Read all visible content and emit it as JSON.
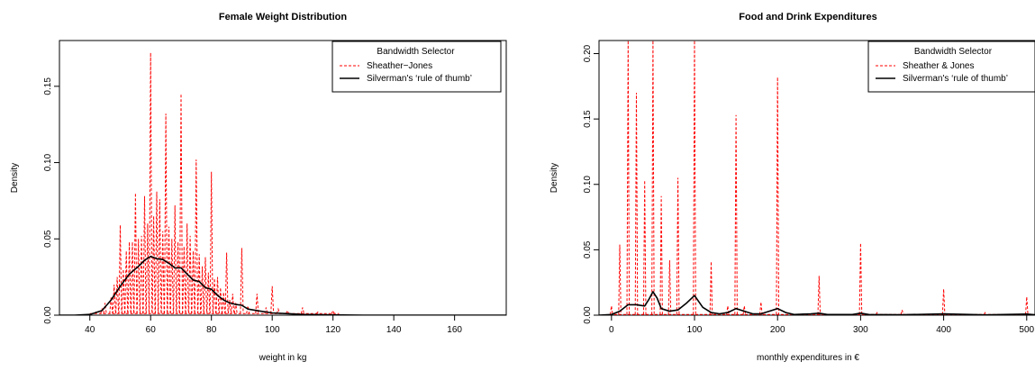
{
  "chart_data": [
    {
      "type": "line",
      "title": "Female Weight Distribution",
      "xlabel": "weight in kg",
      "ylabel": "Density",
      "xlim": [
        30,
        177
      ],
      "ylim": [
        0,
        0.18
      ],
      "xticks": [
        "40",
        "60",
        "80",
        "100",
        "120",
        "140",
        "160"
      ],
      "yticks": [
        "0.00",
        "0.05",
        "0.10",
        "0.15"
      ],
      "legend": {
        "title": "Bandwidth Selector",
        "position": "top-right",
        "entries": [
          {
            "label": "Sheather−Jones",
            "color": "#ff0000",
            "dash": true
          },
          {
            "label": "Silverman's ‘rule of thumb’",
            "color": "#000000",
            "dash": false
          }
        ]
      },
      "series": [
        {
          "name": "Sheather−Jones",
          "color": "#ff0000",
          "kind": "spikes",
          "baseline": 0.001,
          "points": [
            [
              42,
              0.002
            ],
            [
              44,
              0.004
            ],
            [
              45,
              0.008
            ],
            [
              47,
              0.012
            ],
            [
              48,
              0.02
            ],
            [
              49,
              0.025
            ],
            [
              50,
              0.059
            ],
            [
              51,
              0.03
            ],
            [
              52,
              0.042
            ],
            [
              53,
              0.048
            ],
            [
              54,
              0.048
            ],
            [
              55,
              0.08
            ],
            [
              56,
              0.05
            ],
            [
              57,
              0.052
            ],
            [
              58,
              0.078
            ],
            [
              59,
              0.06
            ],
            [
              60,
              0.172
            ],
            [
              61,
              0.065
            ],
            [
              62,
              0.081
            ],
            [
              63,
              0.076
            ],
            [
              64,
              0.055
            ],
            [
              65,
              0.132
            ],
            [
              66,
              0.058
            ],
            [
              67,
              0.05
            ],
            [
              68,
              0.072
            ],
            [
              69,
              0.048
            ],
            [
              70,
              0.145
            ],
            [
              71,
              0.045
            ],
            [
              72,
              0.06
            ],
            [
              73,
              0.052
            ],
            [
              74,
              0.042
            ],
            [
              75,
              0.102
            ],
            [
              76,
              0.04
            ],
            [
              77,
              0.032
            ],
            [
              78,
              0.038
            ],
            [
              79,
              0.028
            ],
            [
              80,
              0.094
            ],
            [
              81,
              0.024
            ],
            [
              82,
              0.025
            ],
            [
              83,
              0.018
            ],
            [
              84,
              0.015
            ],
            [
              85,
              0.041
            ],
            [
              86,
              0.01
            ],
            [
              87,
              0.014
            ],
            [
              88,
              0.008
            ],
            [
              90,
              0.044
            ],
            [
              92,
              0.006
            ],
            [
              95,
              0.014
            ],
            [
              98,
              0.005
            ],
            [
              100,
              0.019
            ],
            [
              102,
              0.004
            ],
            [
              105,
              0.003
            ],
            [
              110,
              0.005
            ],
            [
              115,
              0.002
            ],
            [
              120,
              0.003
            ]
          ]
        },
        {
          "name": "Silverman's ‘rule of thumb’",
          "color": "#000000",
          "kind": "line",
          "points": [
            [
              30,
              0
            ],
            [
              35,
              0
            ],
            [
              40,
              0.0005
            ],
            [
              44,
              0.003
            ],
            [
              47,
              0.01
            ],
            [
              50,
              0.019
            ],
            [
              53,
              0.027
            ],
            [
              56,
              0.032
            ],
            [
              58,
              0.036
            ],
            [
              60,
              0.0385
            ],
            [
              62,
              0.037
            ],
            [
              64,
              0.0365
            ],
            [
              66,
              0.034
            ],
            [
              68,
              0.031
            ],
            [
              70,
              0.031
            ],
            [
              72,
              0.027
            ],
            [
              74,
              0.023
            ],
            [
              76,
              0.022
            ],
            [
              78,
              0.018
            ],
            [
              80,
              0.017
            ],
            [
              82,
              0.013
            ],
            [
              84,
              0.01
            ],
            [
              86,
              0.008
            ],
            [
              88,
              0.007
            ],
            [
              90,
              0.0065
            ],
            [
              92,
              0.004
            ],
            [
              95,
              0.003
            ],
            [
              100,
              0.0015
            ],
            [
              105,
              0.001
            ],
            [
              110,
              0.0005
            ],
            [
              120,
              0.0002
            ],
            [
              130,
              0
            ],
            [
              177,
              0
            ]
          ]
        }
      ]
    },
    {
      "type": "line",
      "title": "Food and Drink Expenditures",
      "xlabel": "monthly expenditures in €",
      "ylabel": "Density",
      "xlim": [
        -15,
        510
      ],
      "ylim": [
        0,
        0.21
      ],
      "xticks": [
        "0",
        "100",
        "200",
        "300",
        "400",
        "500"
      ],
      "yticks": [
        "0.00",
        "0.05",
        "0.10",
        "0.15",
        "0.20"
      ],
      "legend": {
        "title": "Bandwidth Selector",
        "position": "top-right",
        "entries": [
          {
            "label": "Sheather & Jones",
            "color": "#ff0000",
            "dash": true
          },
          {
            "label": "Silverman's ‘rule of thumb’",
            "color": "#000000",
            "dash": false
          }
        ]
      },
      "series": [
        {
          "name": "Sheather & Jones",
          "color": "#ff0000",
          "kind": "spikes",
          "baseline": 0.0005,
          "points": [
            [
              0,
              0.007
            ],
            [
              10,
              0.054
            ],
            [
              20,
              0.21
            ],
            [
              30,
              0.17
            ],
            [
              40,
              0.103
            ],
            [
              50,
              0.21
            ],
            [
              60,
              0.091
            ],
            [
              70,
              0.042
            ],
            [
              80,
              0.105
            ],
            [
              100,
              0.21
            ],
            [
              120,
              0.041
            ],
            [
              140,
              0.007
            ],
            [
              150,
              0.153
            ],
            [
              160,
              0.007
            ],
            [
              180,
              0.01
            ],
            [
              200,
              0.182
            ],
            [
              250,
              0.03
            ],
            [
              300,
              0.055
            ],
            [
              320,
              0.002
            ],
            [
              350,
              0.004
            ],
            [
              400,
              0.02
            ],
            [
              450,
              0.002
            ],
            [
              500,
              0.014
            ]
          ]
        },
        {
          "name": "Silverman's ‘rule of thumb’",
          "color": "#000000",
          "kind": "line",
          "points": [
            [
              -15,
              0
            ],
            [
              0,
              0.0005
            ],
            [
              10,
              0.003
            ],
            [
              20,
              0.008
            ],
            [
              30,
              0.008
            ],
            [
              40,
              0.007
            ],
            [
              45,
              0.012
            ],
            [
              50,
              0.018
            ],
            [
              55,
              0.013
            ],
            [
              60,
              0.005
            ],
            [
              70,
              0.003
            ],
            [
              80,
              0.004
            ],
            [
              90,
              0.009
            ],
            [
              100,
              0.015
            ],
            [
              110,
              0.006
            ],
            [
              120,
              0.002
            ],
            [
              130,
              0.001
            ],
            [
              140,
              0.002
            ],
            [
              150,
              0.005
            ],
            [
              160,
              0.003
            ],
            [
              170,
              0.001
            ],
            [
              180,
              0.001
            ],
            [
              190,
              0.003
            ],
            [
              200,
              0.005
            ],
            [
              210,
              0.002
            ],
            [
              220,
              0.0005
            ],
            [
              240,
              0.001
            ],
            [
              250,
              0.0015
            ],
            [
              260,
              0.0005
            ],
            [
              290,
              0.0005
            ],
            [
              300,
              0.0015
            ],
            [
              310,
              0.0005
            ],
            [
              350,
              0.0003
            ],
            [
              400,
              0.001
            ],
            [
              450,
              0.0002
            ],
            [
              500,
              0.0008
            ],
            [
              510,
              0.0003
            ]
          ]
        }
      ]
    }
  ]
}
